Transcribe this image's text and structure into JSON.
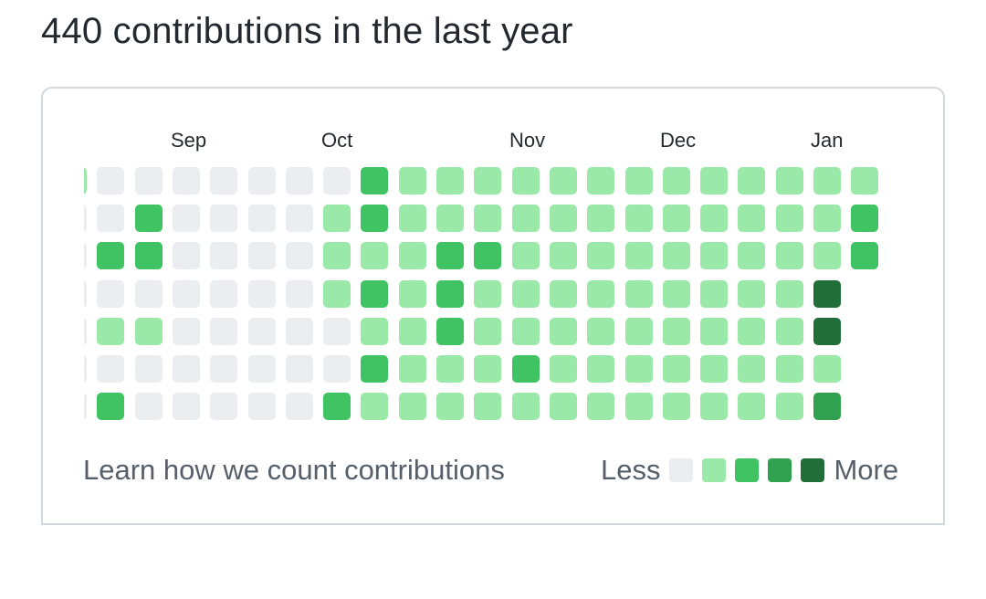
{
  "header": {
    "title": "440 contributions in the last year"
  },
  "months": [
    "Sep",
    "Oct",
    "Nov",
    "Dec",
    "Jan"
  ],
  "footer": {
    "learn_link": "Learn how we count contributions",
    "less_label": "Less",
    "more_label": "More"
  },
  "colors": {
    "level0": "#ebedf0",
    "level1": "#9be9a8",
    "level2": "#40c463",
    "level3": "#30a14e",
    "level4": "#216e39"
  },
  "calendar": {
    "weeks": [
      [
        1,
        0,
        0,
        0,
        0,
        0,
        0
      ],
      [
        0,
        0,
        2,
        0,
        1,
        0,
        2
      ],
      [
        0,
        2,
        2,
        0,
        1,
        0,
        0
      ],
      [
        0,
        0,
        0,
        0,
        0,
        0,
        0
      ],
      [
        0,
        0,
        0,
        0,
        0,
        0,
        0
      ],
      [
        0,
        0,
        0,
        0,
        0,
        0,
        0
      ],
      [
        0,
        0,
        0,
        0,
        0,
        0,
        0
      ],
      [
        0,
        1,
        1,
        1,
        0,
        0,
        2
      ],
      [
        2,
        2,
        1,
        2,
        1,
        2,
        1
      ],
      [
        1,
        1,
        1,
        1,
        1,
        1,
        1
      ],
      [
        1,
        1,
        2,
        2,
        2,
        1,
        1
      ],
      [
        1,
        1,
        2,
        1,
        1,
        1,
        1
      ],
      [
        1,
        1,
        1,
        1,
        1,
        2,
        1
      ],
      [
        1,
        1,
        1,
        1,
        1,
        1,
        1
      ],
      [
        1,
        1,
        1,
        1,
        1,
        1,
        1
      ],
      [
        1,
        1,
        1,
        1,
        1,
        1,
        1
      ],
      [
        1,
        1,
        1,
        1,
        1,
        1,
        1
      ],
      [
        1,
        1,
        1,
        1,
        1,
        1,
        1
      ],
      [
        1,
        1,
        1,
        1,
        1,
        1,
        1
      ],
      [
        1,
        1,
        1,
        1,
        1,
        1,
        1
      ],
      [
        1,
        1,
        1,
        4,
        4,
        1,
        3
      ],
      [
        1,
        2,
        2,
        null,
        null,
        null,
        null
      ]
    ]
  }
}
